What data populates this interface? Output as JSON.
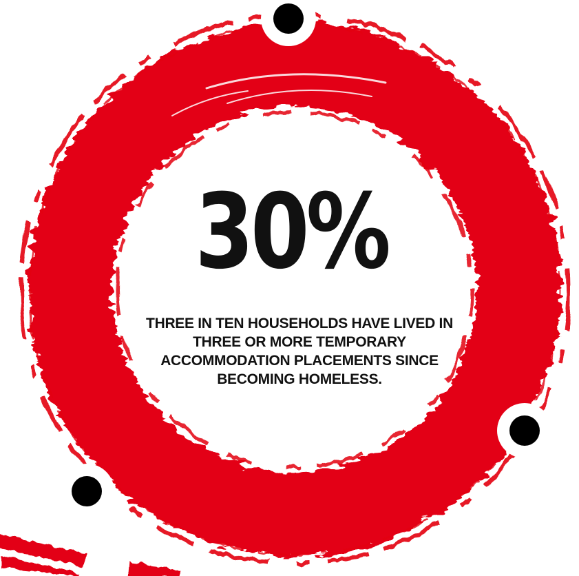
{
  "statistic": {
    "value": "30%",
    "caption": "THREE IN TEN HOUSEHOLDS HAVE LIVED IN THREE OR MORE TEMPORARY ACCOMMODATION PLACEMENTS SINCE BECOMING HOMELESS."
  },
  "colors": {
    "ring": "#e30613",
    "text": "#111111",
    "dot": "#000000",
    "background": "#ffffff"
  },
  "icons": {
    "ring": "brush-stroke-ring",
    "dots": "node-dot-icon",
    "stripes": "brush-stripes"
  }
}
